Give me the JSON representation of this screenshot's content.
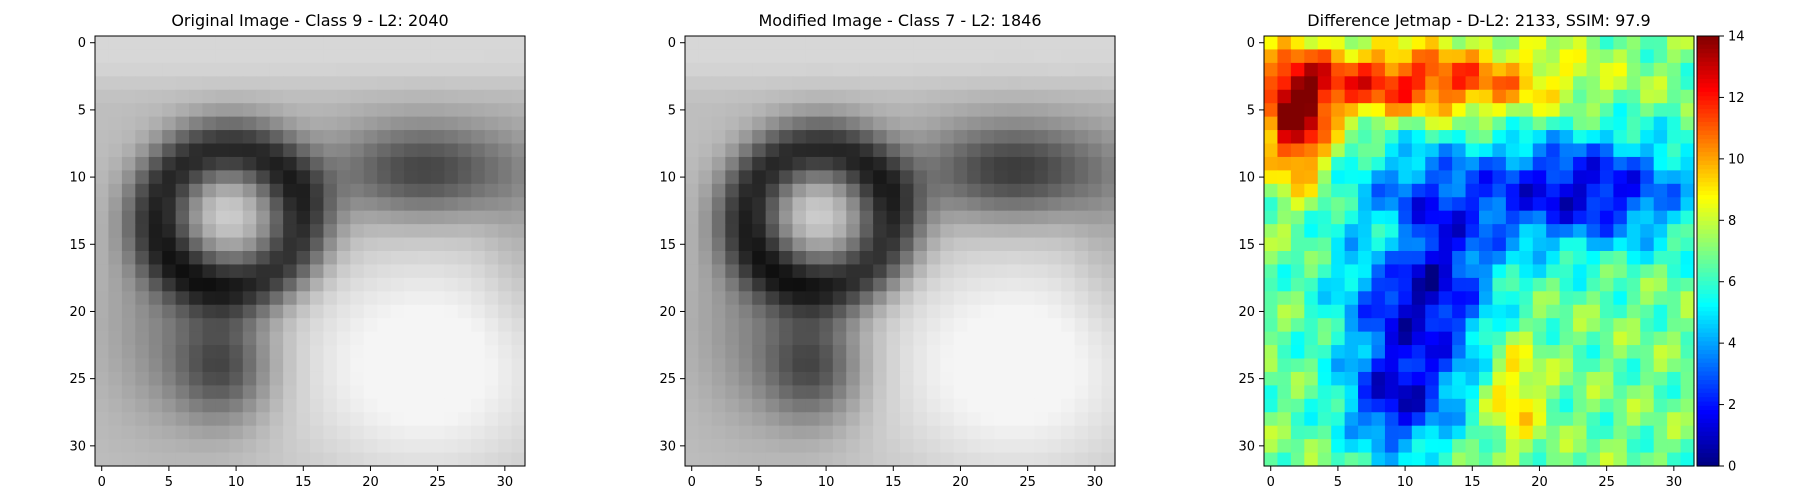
{
  "chart_data": [
    {
      "type": "heatmap",
      "title": "Original Image - Class 9 - L2: 2040",
      "title_color": "#000000",
      "colormap": "gray",
      "grid_size": 32,
      "x_ticks": [
        "0",
        "5",
        "10",
        "15",
        "20",
        "25",
        "30"
      ],
      "y_ticks": [
        "0",
        "5",
        "10",
        "15",
        "20",
        "25",
        "30"
      ]
    },
    {
      "type": "heatmap",
      "title": "Modified Image - Class 7 - L2: 1846",
      "title_color": "#ff0000",
      "colormap": "gray",
      "grid_size": 32,
      "x_ticks": [
        "0",
        "5",
        "10",
        "15",
        "20",
        "25",
        "30"
      ],
      "y_ticks": [
        "0",
        "5",
        "10",
        "15",
        "20",
        "25",
        "30"
      ]
    },
    {
      "type": "heatmap",
      "title": "Difference Jetmap - D-L2: 2133, SSIM: 97.9",
      "title_color": "#000000",
      "colormap": "jet",
      "grid_size": 32,
      "x_ticks": [
        "0",
        "5",
        "10",
        "15",
        "20",
        "25",
        "30"
      ],
      "y_ticks": [
        "0",
        "5",
        "10",
        "15",
        "20",
        "25",
        "30"
      ],
      "colorbar": {
        "range": [
          0,
          14
        ],
        "ticks": [
          "0",
          "2",
          "4",
          "6",
          "8",
          "10",
          "12",
          "14"
        ]
      }
    }
  ]
}
